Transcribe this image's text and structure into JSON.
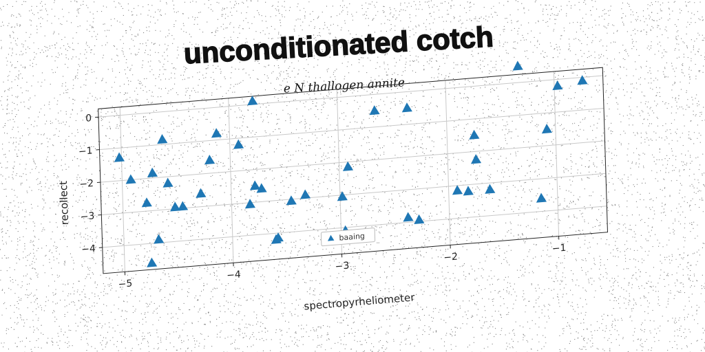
{
  "chart_data": {
    "type": "scatter",
    "title": "unconditionated cotch",
    "subtitle": "e N thallogen annite",
    "xlabel": "spectropyrheliometer",
    "ylabel": "recollect",
    "xlim": [
      -5.2,
      -0.55
    ],
    "ylim": [
      -4.8,
      0.25
    ],
    "xticks": [
      -5,
      -4,
      -3,
      -2,
      -1
    ],
    "yticks": [
      0,
      -1,
      -2,
      -3,
      -4
    ],
    "xtick_labels": [
      "−5",
      "−4",
      "−3",
      "−2",
      "−1"
    ],
    "ytick_labels": [
      "0",
      "−1",
      "−2",
      "−3",
      "−4"
    ],
    "grid": true,
    "legend_position": "lower center",
    "colors": {
      "series": "#1f77b4",
      "noise": "#1a1a1a"
    },
    "series": [
      {
        "name": "baaing",
        "marker": "triangle",
        "x": [
          -5.02,
          -4.92,
          -4.75,
          -4.78,
          -4.72,
          -4.68,
          -4.62,
          -4.58,
          -4.52,
          -4.45,
          -4.28,
          -4.19,
          -4.12,
          -3.92,
          -3.78,
          -3.83,
          -3.78,
          -3.72,
          -3.6,
          -3.58,
          -3.45,
          -3.32,
          -2.98,
          -2.96,
          -2.92,
          -2.66,
          -2.38,
          -2.36,
          -2.28,
          -1.92,
          -1.82,
          -1.75,
          -1.74,
          -1.62,
          -1.33,
          -1.15,
          -1.08,
          -0.97,
          -0.74
        ],
        "y": [
          -1.3,
          -2.0,
          -4.6,
          -2.75,
          -1.85,
          -3.9,
          -0.85,
          -2.2,
          -2.95,
          -2.95,
          -2.6,
          -1.6,
          -0.8,
          -1.2,
          -2.5,
          -3.05,
          0.1,
          -2.6,
          -4.2,
          -4.15,
          -3.05,
          -2.9,
          -3.05,
          -4.1,
          -2.15,
          -0.5,
          -3.85,
          -0.5,
          -3.95,
          -3.15,
          -3.2,
          -1.5,
          -2.25,
          -3.2,
          0.5,
          -3.6,
          -1.5,
          -0.2,
          -0.1
        ]
      }
    ]
  }
}
